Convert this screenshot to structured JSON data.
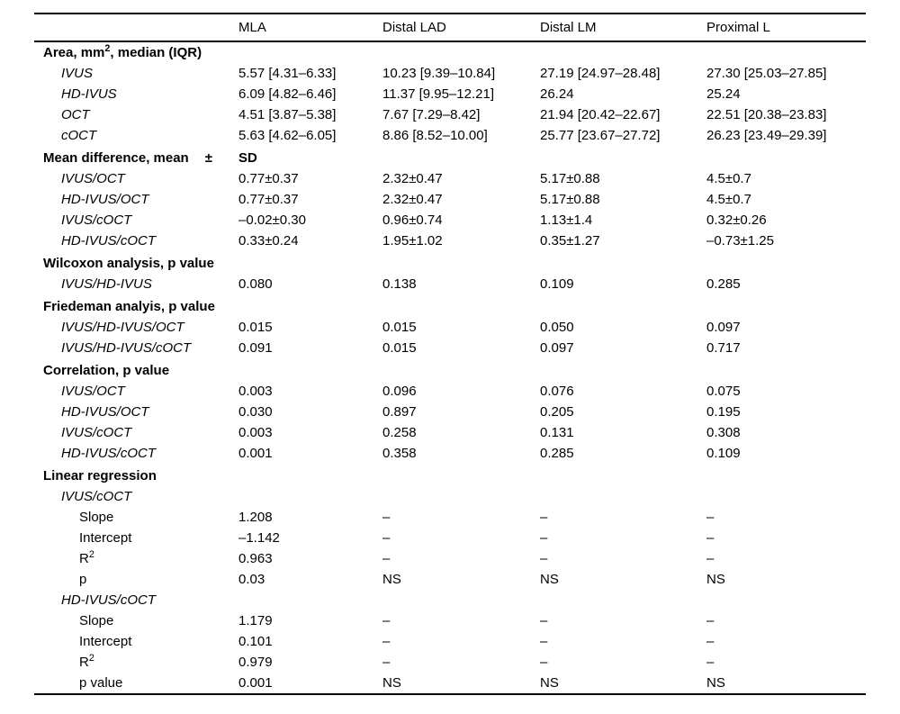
{
  "colors": {
    "background": "#ffffff",
    "text": "#000000",
    "rule": "#000000"
  },
  "table": {
    "columns": [
      "",
      "MLA",
      "Distal LAD",
      "Distal LM",
      "Proximal L"
    ],
    "rows": [
      {
        "label": "Area, mm², median (IQR)",
        "style": "section",
        "indent": 0,
        "cells": [
          "",
          "",
          "",
          ""
        ]
      },
      {
        "label": "IVUS",
        "style": "item",
        "indent": 1,
        "cells": [
          "5.57 [4.31–6.33]",
          "10.23 [9.39–10.84]",
          "27.19 [24.97–28.48]",
          "27.30 [25.03–27.85]"
        ]
      },
      {
        "label": "HD-IVUS",
        "style": "item",
        "indent": 1,
        "cells": [
          "6.09 [4.82–6.46]",
          "11.37 [9.95–12.21]",
          "26.24",
          "25.24"
        ]
      },
      {
        "label": "OCT",
        "style": "item",
        "indent": 1,
        "cells": [
          "4.51 [3.87–5.38]",
          "7.67 [7.29–8.42]",
          "21.94 [20.42–22.67]",
          "22.51 [20.38–23.83]"
        ]
      },
      {
        "label": "cOCT",
        "style": "item",
        "indent": 1,
        "cells": [
          "5.63 [4.62–6.05]",
          "8.86 [8.52–10.00]",
          "25.77 [23.67–27.72]",
          "26.23 [23.49–29.39]"
        ]
      },
      {
        "label": "Mean difference, mean",
        "suffix": "±",
        "style": "section",
        "spaced": true,
        "indent": 0,
        "bold_cells": true,
        "cells": [
          "SD",
          "",
          "",
          ""
        ]
      },
      {
        "label": "IVUS/OCT",
        "style": "item",
        "indent": 1,
        "cells": [
          "0.77±0.37",
          "2.32±0.47",
          "5.17±0.88",
          "4.5±0.7"
        ]
      },
      {
        "label": "HD-IVUS/OCT",
        "style": "item",
        "indent": 1,
        "cells": [
          "0.77±0.37",
          "2.32±0.47",
          "5.17±0.88",
          "4.5±0.7"
        ]
      },
      {
        "label": "IVUS/cOCT",
        "style": "item",
        "indent": 1,
        "cells": [
          "–0.02±0.30",
          "0.96±0.74",
          "1.13±1.4",
          "0.32±0.26"
        ]
      },
      {
        "label": "HD-IVUS/cOCT",
        "style": "item",
        "indent": 1,
        "cells": [
          "0.33±0.24",
          "1.95±1.02",
          "0.35±1.27",
          "–0.73±1.25"
        ]
      },
      {
        "label": "Wilcoxon analysis, p value",
        "style": "section",
        "spaced": true,
        "indent": 0,
        "cells": [
          "",
          "",
          "",
          ""
        ]
      },
      {
        "label": "IVUS/HD-IVUS",
        "style": "item",
        "indent": 1,
        "cells": [
          "0.080",
          "0.138",
          "0.109",
          "0.285"
        ]
      },
      {
        "label": "Friedeman analyis, p value",
        "style": "section",
        "spaced": true,
        "indent": 0,
        "cells": [
          "",
          "",
          "",
          ""
        ]
      },
      {
        "label": "IVUS/HD-IVUS/OCT",
        "style": "item",
        "indent": 1,
        "cells": [
          "0.015",
          "0.015",
          "0.050",
          "0.097"
        ]
      },
      {
        "label": "IVUS/HD-IVUS/cOCT",
        "style": "item",
        "indent": 1,
        "cells": [
          "0.091",
          "0.015",
          "0.097",
          "0.717"
        ]
      },
      {
        "label": "Correlation, p value",
        "style": "section",
        "spaced": true,
        "indent": 0,
        "cells": [
          "",
          "",
          "",
          ""
        ]
      },
      {
        "label": "IVUS/OCT",
        "style": "item",
        "indent": 1,
        "cells": [
          "0.003",
          "0.096",
          "0.076",
          "0.075"
        ]
      },
      {
        "label": "HD-IVUS/OCT",
        "style": "item",
        "indent": 1,
        "cells": [
          "0.030",
          "0.897",
          "0.205",
          "0.195"
        ]
      },
      {
        "label": "IVUS/cOCT",
        "style": "item",
        "indent": 1,
        "cells": [
          "0.003",
          "0.258",
          "0.131",
          "0.308"
        ]
      },
      {
        "label": "HD-IVUS/cOCT",
        "style": "item",
        "indent": 1,
        "cells": [
          "0.001",
          "0.358",
          "0.285",
          "0.109"
        ]
      },
      {
        "label": "Linear regression",
        "style": "section",
        "spaced": true,
        "indent": 0,
        "cells": [
          "",
          "",
          "",
          ""
        ]
      },
      {
        "label": "IVUS/cOCT",
        "style": "item",
        "indent": 1,
        "cells": [
          "",
          "",
          "",
          ""
        ]
      },
      {
        "label": "Slope",
        "style": "leaf",
        "indent": 2,
        "cells": [
          "1.208",
          "–",
          "–",
          "–"
        ]
      },
      {
        "label": "Intercept",
        "style": "leaf",
        "indent": 2,
        "cells": [
          "–1.142",
          "–",
          "–",
          "–"
        ]
      },
      {
        "label": "R²",
        "style": "leaf",
        "indent": 2,
        "cells": [
          "0.963",
          "–",
          "–",
          "–"
        ]
      },
      {
        "label": "p",
        "style": "leaf",
        "indent": 2,
        "cells": [
          "0.03",
          "NS",
          "NS",
          "NS"
        ]
      },
      {
        "label": "HD-IVUS/cOCT",
        "style": "item",
        "indent": 1,
        "cells": [
          "",
          "",
          "",
          ""
        ]
      },
      {
        "label": "Slope",
        "style": "leaf",
        "indent": 2,
        "cells": [
          "1.179",
          "–",
          "–",
          "–"
        ]
      },
      {
        "label": "Intercept",
        "style": "leaf",
        "indent": 2,
        "cells": [
          "0.101",
          "–",
          "–",
          "–"
        ]
      },
      {
        "label": "R²",
        "style": "leaf",
        "indent": 2,
        "cells": [
          "0.979",
          "–",
          "–",
          "–"
        ]
      },
      {
        "label": "p value",
        "style": "leaf",
        "indent": 2,
        "cells": [
          "0.001",
          "NS",
          "NS",
          "NS"
        ]
      }
    ]
  }
}
